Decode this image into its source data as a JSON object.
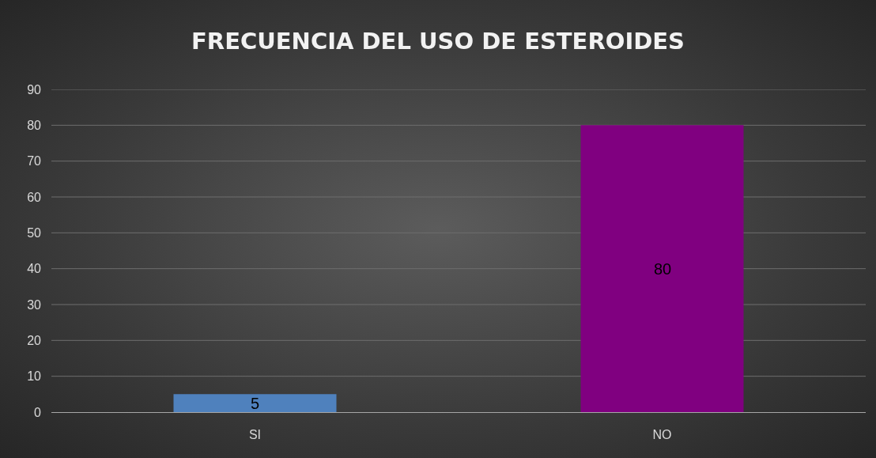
{
  "chart_data": {
    "type": "bar",
    "title": "FRECUENCIA DEL USO DE ESTEROIDES",
    "categories": [
      "SI",
      "NO"
    ],
    "values": [
      5,
      80
    ],
    "colors": [
      "#4f81bd",
      "#800080"
    ],
    "ylim": [
      0,
      90
    ],
    "yticks": [
      0,
      10,
      20,
      30,
      40,
      50,
      60,
      70,
      80,
      90
    ],
    "grid": "y",
    "data_labels": true
  }
}
